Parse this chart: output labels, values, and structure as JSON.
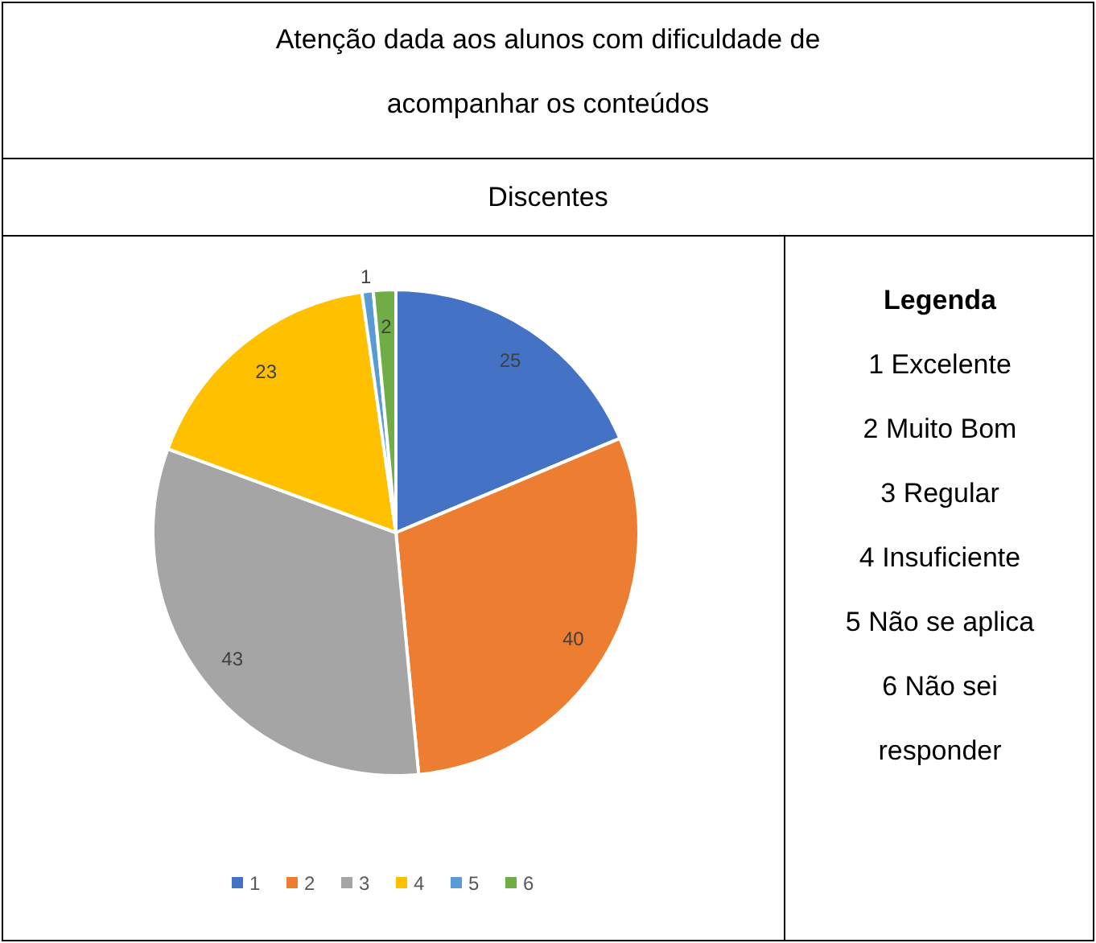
{
  "chart_data": {
    "type": "pie",
    "title": "Atenção dada aos alunos com dificuldade de acompanhar os conteúdos",
    "subtitle": "Discentes",
    "categories": [
      "1",
      "2",
      "3",
      "4",
      "5",
      "6"
    ],
    "values": [
      25,
      40,
      43,
      23,
      1,
      2
    ],
    "colors": [
      "#4472c4",
      "#ed7d31",
      "#a5a5a5",
      "#ffc000",
      "#5b9bd5",
      "#70ad47"
    ],
    "data_labels": true,
    "legend": "bottom",
    "annotations": [
      "Legenda",
      "1 Excelente",
      "2 Muito Bom",
      "3 Regular",
      "4 Insuficiente",
      "5 Não se aplica",
      "6 Não sei responder"
    ]
  }
}
